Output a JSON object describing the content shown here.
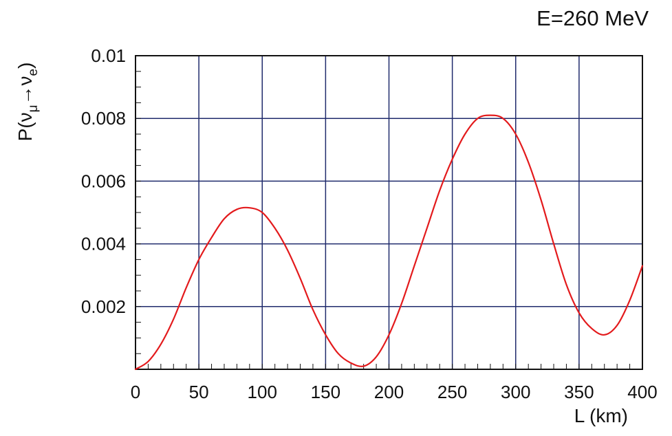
{
  "chart_data": {
    "type": "line",
    "title": "E=260 MeV",
    "xlabel": "L (km)",
    "ylabel": {
      "prefix": "P(",
      "nu": "ν",
      "sub_mu": "μ",
      "arrow": "→",
      "sub_e": "e",
      "suffix": ")"
    },
    "xlim": [
      0,
      400
    ],
    "ylim": [
      0,
      0.01
    ],
    "x_ticks": [
      0,
      50,
      100,
      150,
      200,
      250,
      300,
      350,
      400
    ],
    "x_tick_labels": [
      "0",
      "50",
      "100",
      "150",
      "200",
      "250",
      "300",
      "350",
      "400"
    ],
    "y_ticks": [
      0.002,
      0.004,
      0.006,
      0.008,
      0.01
    ],
    "y_tick_labels": [
      "0.002",
      "0.004",
      "0.006",
      "0.008",
      "0.01"
    ],
    "grid": true,
    "colors": {
      "line": "#e31a1c",
      "grid": "#1f2a6b",
      "axis": "#111111",
      "text": "#111111"
    },
    "series": [
      {
        "x": [
          0,
          10,
          20,
          30,
          40,
          50,
          60,
          70,
          80,
          90,
          100,
          110,
          120,
          130,
          140,
          150,
          160,
          170,
          180,
          190,
          200,
          210,
          220,
          230,
          240,
          250,
          260,
          270,
          280,
          290,
          300,
          310,
          320,
          330,
          340,
          350,
          360,
          370,
          380,
          390,
          400
        ],
        "y": [
          0.0,
          0.00025,
          0.0008,
          0.0016,
          0.0026,
          0.0035,
          0.0042,
          0.0048,
          0.0051,
          0.00515,
          0.005,
          0.0045,
          0.0038,
          0.0029,
          0.0019,
          0.0011,
          0.0005,
          0.0002,
          0.0001,
          0.0004,
          0.0011,
          0.0021,
          0.0033,
          0.0045,
          0.0057,
          0.0067,
          0.0075,
          0.008,
          0.0081,
          0.008,
          0.0075,
          0.0066,
          0.0054,
          0.004,
          0.0027,
          0.0018,
          0.0013,
          0.0011,
          0.0014,
          0.0022,
          0.0033
        ]
      }
    ]
  }
}
